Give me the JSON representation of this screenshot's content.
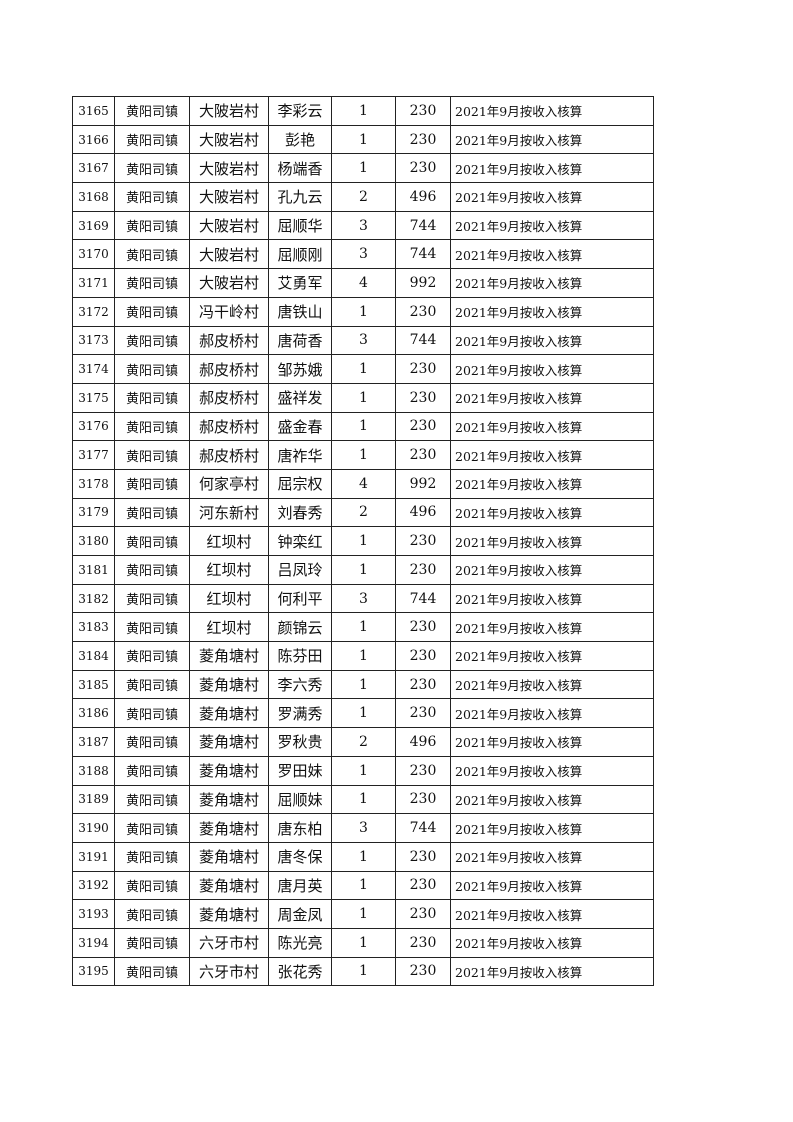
{
  "table": {
    "rows": [
      [
        "3165",
        "黄阳司镇",
        "大陂岩村",
        "李彩云",
        "1",
        "230",
        "2021年9月按收入核算"
      ],
      [
        "3166",
        "黄阳司镇",
        "大陂岩村",
        "彭艳",
        "1",
        "230",
        "2021年9月按收入核算"
      ],
      [
        "3167",
        "黄阳司镇",
        "大陂岩村",
        "杨端香",
        "1",
        "230",
        "2021年9月按收入核算"
      ],
      [
        "3168",
        "黄阳司镇",
        "大陂岩村",
        "孔九云",
        "2",
        "496",
        "2021年9月按收入核算"
      ],
      [
        "3169",
        "黄阳司镇",
        "大陂岩村",
        "屈顺华",
        "3",
        "744",
        "2021年9月按收入核算"
      ],
      [
        "3170",
        "黄阳司镇",
        "大陂岩村",
        "屈顺刚",
        "3",
        "744",
        "2021年9月按收入核算"
      ],
      [
        "3171",
        "黄阳司镇",
        "大陂岩村",
        "艾勇军",
        "4",
        "992",
        "2021年9月按收入核算"
      ],
      [
        "3172",
        "黄阳司镇",
        "冯干岭村",
        "唐铁山",
        "1",
        "230",
        "2021年9月按收入核算"
      ],
      [
        "3173",
        "黄阳司镇",
        "郝皮桥村",
        "唐荷香",
        "3",
        "744",
        "2021年9月按收入核算"
      ],
      [
        "3174",
        "黄阳司镇",
        "郝皮桥村",
        "邹苏娥",
        "1",
        "230",
        "2021年9月按收入核算"
      ],
      [
        "3175",
        "黄阳司镇",
        "郝皮桥村",
        "盛祥发",
        "1",
        "230",
        "2021年9月按收入核算"
      ],
      [
        "3176",
        "黄阳司镇",
        "郝皮桥村",
        "盛金春",
        "1",
        "230",
        "2021年9月按收入核算"
      ],
      [
        "3177",
        "黄阳司镇",
        "郝皮桥村",
        "唐祚华",
        "1",
        "230",
        "2021年9月按收入核算"
      ],
      [
        "3178",
        "黄阳司镇",
        "何家亭村",
        "屈宗权",
        "4",
        "992",
        "2021年9月按收入核算"
      ],
      [
        "3179",
        "黄阳司镇",
        "河东新村",
        "刘春秀",
        "2",
        "496",
        "2021年9月按收入核算"
      ],
      [
        "3180",
        "黄阳司镇",
        "红坝村",
        "钟栾红",
        "1",
        "230",
        "2021年9月按收入核算"
      ],
      [
        "3181",
        "黄阳司镇",
        "红坝村",
        "吕凤玲",
        "1",
        "230",
        "2021年9月按收入核算"
      ],
      [
        "3182",
        "黄阳司镇",
        "红坝村",
        "何利平",
        "3",
        "744",
        "2021年9月按收入核算"
      ],
      [
        "3183",
        "黄阳司镇",
        "红坝村",
        "颜锦云",
        "1",
        "230",
        "2021年9月按收入核算"
      ],
      [
        "3184",
        "黄阳司镇",
        "菱角塘村",
        "陈芬田",
        "1",
        "230",
        "2021年9月按收入核算"
      ],
      [
        "3185",
        "黄阳司镇",
        "菱角塘村",
        "李六秀",
        "1",
        "230",
        "2021年9月按收入核算"
      ],
      [
        "3186",
        "黄阳司镇",
        "菱角塘村",
        "罗满秀",
        "1",
        "230",
        "2021年9月按收入核算"
      ],
      [
        "3187",
        "黄阳司镇",
        "菱角塘村",
        "罗秋贵",
        "2",
        "496",
        "2021年9月按收入核算"
      ],
      [
        "3188",
        "黄阳司镇",
        "菱角塘村",
        "罗田妹",
        "1",
        "230",
        "2021年9月按收入核算"
      ],
      [
        "3189",
        "黄阳司镇",
        "菱角塘村",
        "屈顺妹",
        "1",
        "230",
        "2021年9月按收入核算"
      ],
      [
        "3190",
        "黄阳司镇",
        "菱角塘村",
        "唐东柏",
        "3",
        "744",
        "2021年9月按收入核算"
      ],
      [
        "3191",
        "黄阳司镇",
        "菱角塘村",
        "唐冬保",
        "1",
        "230",
        "2021年9月按收入核算"
      ],
      [
        "3192",
        "黄阳司镇",
        "菱角塘村",
        "唐月英",
        "1",
        "230",
        "2021年9月按收入核算"
      ],
      [
        "3193",
        "黄阳司镇",
        "菱角塘村",
        "周金凤",
        "1",
        "230",
        "2021年9月按收入核算"
      ],
      [
        "3194",
        "黄阳司镇",
        "六牙市村",
        "陈光亮",
        "1",
        "230",
        "2021年9月按收入核算"
      ],
      [
        "3195",
        "黄阳司镇",
        "六牙市村",
        "张花秀",
        "1",
        "230",
        "2021年9月按收入核算"
      ]
    ]
  }
}
